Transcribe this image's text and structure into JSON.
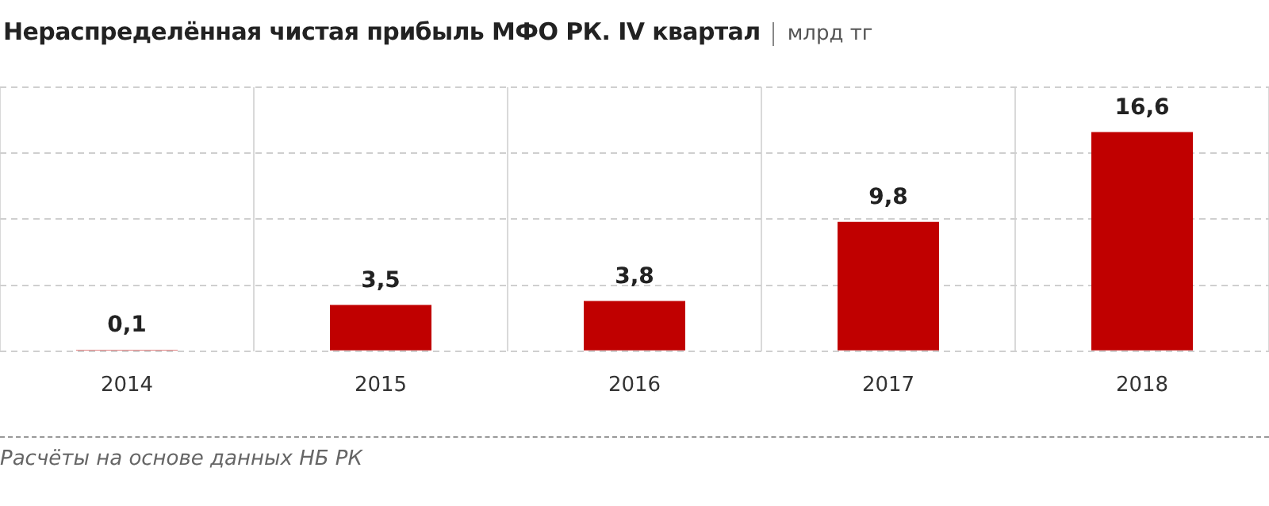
{
  "chart_data": {
    "type": "bar",
    "title": "Нераспределённая чистая прибыль МФО РК. IV квартал",
    "subtitle": "млрд тг",
    "categories": [
      "2014",
      "2015",
      "2016",
      "2017",
      "2018"
    ],
    "values": [
      0.1,
      3.5,
      3.8,
      9.8,
      16.6
    ],
    "color": "#c00000",
    "value_labels": [
      "0,1",
      "3,5",
      "3,8",
      "9,8",
      "16,6"
    ],
    "tick_labels": "x",
    "grid": true,
    "legend": false,
    "annotations": [
      "Расчёты на основе данных НБ РК"
    ]
  }
}
